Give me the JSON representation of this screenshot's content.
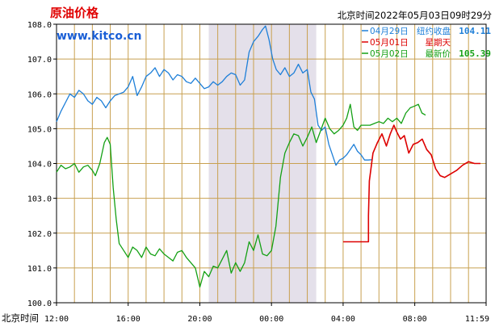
{
  "header": {
    "title": "原油价格",
    "site": "www.kitco.cn",
    "timestamp": "北京时间2022年05月03日09时29分"
  },
  "colors": {
    "apr29": "#1e7fd8",
    "may01": "#dd0000",
    "may02": "#14a014",
    "grid": "#c8a050",
    "frame": "#000000",
    "shade": "#e4e0ea"
  },
  "chart_data": {
    "type": "line",
    "ylim": [
      100.0,
      108.0
    ],
    "y_ticks": [
      "100.0",
      "101.0",
      "102.0",
      "103.0",
      "104.0",
      "105.0",
      "106.0",
      "107.0",
      "108.0"
    ],
    "x_axis_label": "北京时间",
    "x_ticks": [
      "12:00",
      "16:00",
      "20:00",
      "00:00",
      "04:00",
      "08:00",
      "11:59"
    ],
    "x_minutes_from_noon": [
      0,
      240,
      480,
      720,
      960,
      1200,
      1439
    ],
    "shaded_range_minutes": [
      510,
      870
    ],
    "legend": [
      {
        "date": "04月29日",
        "label": "纽约收盘",
        "value": "104.11",
        "color": "#1e7fd8"
      },
      {
        "date": "05月01日",
        "label": "星期天",
        "value": "",
        "color": "#dd0000"
      },
      {
        "date": "05月02日",
        "label": "最新价",
        "value": "105.39",
        "color": "#14a014"
      }
    ],
    "series": [
      {
        "date": "04月29日",
        "points": [
          [
            0,
            105.2
          ],
          [
            15,
            105.5
          ],
          [
            30,
            105.75
          ],
          [
            45,
            106.0
          ],
          [
            60,
            105.9
          ],
          [
            75,
            106.1
          ],
          [
            90,
            106.0
          ],
          [
            105,
            105.8
          ],
          [
            120,
            105.7
          ],
          [
            135,
            105.9
          ],
          [
            150,
            105.8
          ],
          [
            165,
            105.6
          ],
          [
            180,
            105.8
          ],
          [
            195,
            105.95
          ],
          [
            210,
            106.0
          ],
          [
            225,
            106.05
          ],
          [
            240,
            106.2
          ],
          [
            255,
            106.5
          ],
          [
            270,
            105.95
          ],
          [
            285,
            106.2
          ],
          [
            300,
            106.5
          ],
          [
            315,
            106.6
          ],
          [
            330,
            106.75
          ],
          [
            345,
            106.5
          ],
          [
            360,
            106.7
          ],
          [
            375,
            106.6
          ],
          [
            390,
            106.4
          ],
          [
            405,
            106.55
          ],
          [
            420,
            106.5
          ],
          [
            435,
            106.35
          ],
          [
            450,
            106.3
          ],
          [
            465,
            106.45
          ],
          [
            480,
            106.3
          ],
          [
            495,
            106.15
          ],
          [
            510,
            106.2
          ],
          [
            525,
            106.35
          ],
          [
            540,
            106.25
          ],
          [
            555,
            106.35
          ],
          [
            570,
            106.5
          ],
          [
            585,
            106.6
          ],
          [
            600,
            106.55
          ],
          [
            615,
            106.25
          ],
          [
            630,
            106.4
          ],
          [
            645,
            107.2
          ],
          [
            660,
            107.5
          ],
          [
            675,
            107.65
          ],
          [
            690,
            107.85
          ],
          [
            700,
            107.95
          ],
          [
            712,
            107.55
          ],
          [
            724,
            107.0
          ],
          [
            736,
            106.7
          ],
          [
            750,
            106.55
          ],
          [
            765,
            106.75
          ],
          [
            780,
            106.5
          ],
          [
            795,
            106.6
          ],
          [
            810,
            106.85
          ],
          [
            825,
            106.6
          ],
          [
            840,
            106.7
          ],
          [
            852,
            106.05
          ],
          [
            864,
            105.85
          ],
          [
            876,
            105.1
          ],
          [
            888,
            104.95
          ],
          [
            900,
            105.05
          ],
          [
            912,
            104.55
          ],
          [
            924,
            104.25
          ],
          [
            936,
            103.95
          ],
          [
            948,
            104.1
          ],
          [
            960,
            104.15
          ],
          [
            972,
            104.25
          ],
          [
            984,
            104.4
          ],
          [
            996,
            104.55
          ],
          [
            1008,
            104.35
          ],
          [
            1020,
            104.25
          ],
          [
            1032,
            104.1
          ],
          [
            1044,
            104.1
          ],
          [
            1056,
            104.11
          ]
        ]
      },
      {
        "date": "05月01日",
        "points": [
          [
            960,
            101.75
          ],
          [
            1045,
            101.75
          ],
          [
            1045,
            101.75
          ],
          [
            1045,
            102.5
          ],
          [
            1048,
            103.5
          ],
          [
            1060,
            104.3
          ],
          [
            1075,
            104.6
          ],
          [
            1090,
            104.85
          ],
          [
            1105,
            104.5
          ],
          [
            1118,
            104.85
          ],
          [
            1130,
            105.1
          ],
          [
            1140,
            104.9
          ],
          [
            1152,
            104.7
          ],
          [
            1165,
            104.8
          ],
          [
            1180,
            104.3
          ],
          [
            1195,
            104.55
          ],
          [
            1210,
            104.6
          ],
          [
            1225,
            104.7
          ],
          [
            1240,
            104.4
          ],
          [
            1255,
            104.25
          ],
          [
            1270,
            103.85
          ],
          [
            1285,
            103.65
          ],
          [
            1300,
            103.6
          ],
          [
            1320,
            103.7
          ],
          [
            1340,
            103.8
          ],
          [
            1360,
            103.95
          ],
          [
            1380,
            104.05
          ],
          [
            1400,
            104.0
          ],
          [
            1420,
            104.0
          ]
        ]
      },
      {
        "date": "05月02日",
        "points": [
          [
            0,
            103.75
          ],
          [
            15,
            103.95
          ],
          [
            30,
            103.85
          ],
          [
            45,
            103.9
          ],
          [
            60,
            104.0
          ],
          [
            75,
            103.75
          ],
          [
            90,
            103.9
          ],
          [
            105,
            103.95
          ],
          [
            120,
            103.8
          ],
          [
            130,
            103.65
          ],
          [
            145,
            104.0
          ],
          [
            160,
            104.6
          ],
          [
            170,
            104.75
          ],
          [
            180,
            104.55
          ],
          [
            190,
            103.3
          ],
          [
            200,
            102.4
          ],
          [
            210,
            101.7
          ],
          [
            225,
            101.5
          ],
          [
            240,
            101.3
          ],
          [
            255,
            101.6
          ],
          [
            270,
            101.5
          ],
          [
            285,
            101.3
          ],
          [
            300,
            101.6
          ],
          [
            315,
            101.4
          ],
          [
            330,
            101.35
          ],
          [
            345,
            101.55
          ],
          [
            360,
            101.4
          ],
          [
            375,
            101.3
          ],
          [
            390,
            101.2
          ],
          [
            405,
            101.45
          ],
          [
            420,
            101.5
          ],
          [
            435,
            101.3
          ],
          [
            450,
            101.15
          ],
          [
            465,
            101.0
          ],
          [
            480,
            100.45
          ],
          [
            495,
            100.9
          ],
          [
            510,
            100.75
          ],
          [
            525,
            101.05
          ],
          [
            540,
            101.0
          ],
          [
            555,
            101.25
          ],
          [
            570,
            101.5
          ],
          [
            585,
            100.85
          ],
          [
            600,
            101.15
          ],
          [
            615,
            100.9
          ],
          [
            630,
            101.15
          ],
          [
            645,
            101.75
          ],
          [
            660,
            101.5
          ],
          [
            675,
            101.95
          ],
          [
            690,
            101.4
          ],
          [
            705,
            101.35
          ],
          [
            720,
            101.5
          ],
          [
            735,
            102.2
          ],
          [
            750,
            103.6
          ],
          [
            765,
            104.3
          ],
          [
            780,
            104.6
          ],
          [
            795,
            104.85
          ],
          [
            810,
            104.8
          ],
          [
            825,
            104.5
          ],
          [
            840,
            104.75
          ],
          [
            855,
            105.05
          ],
          [
            870,
            104.6
          ],
          [
            885,
            104.95
          ],
          [
            900,
            105.3
          ],
          [
            915,
            105.0
          ],
          [
            930,
            104.85
          ],
          [
            945,
            104.95
          ],
          [
            960,
            105.1
          ],
          [
            972,
            105.3
          ],
          [
            984,
            105.7
          ],
          [
            996,
            105.05
          ],
          [
            1008,
            104.95
          ],
          [
            1020,
            105.1
          ],
          [
            1035,
            105.1
          ],
          [
            1050,
            105.1
          ],
          [
            1065,
            105.15
          ],
          [
            1080,
            105.2
          ],
          [
            1095,
            105.15
          ],
          [
            1110,
            105.3
          ],
          [
            1125,
            105.2
          ],
          [
            1140,
            105.3
          ],
          [
            1155,
            105.15
          ],
          [
            1170,
            105.45
          ],
          [
            1185,
            105.6
          ],
          [
            1200,
            105.65
          ],
          [
            1212,
            105.7
          ],
          [
            1224,
            105.45
          ],
          [
            1236,
            105.39
          ]
        ]
      }
    ]
  }
}
